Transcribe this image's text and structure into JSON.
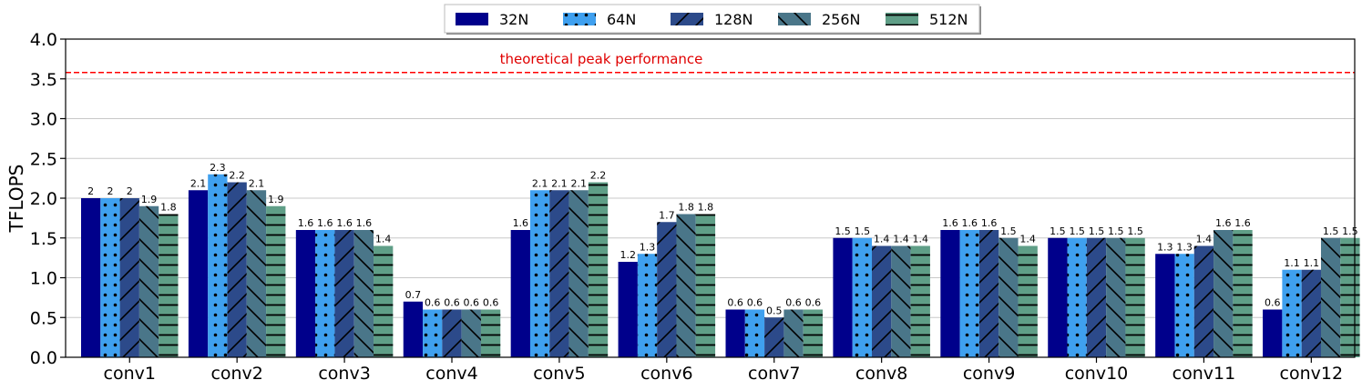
{
  "chart_data": {
    "type": "bar",
    "title": "",
    "xlabel": "",
    "ylabel": "TFLOPS",
    "ylim": [
      0,
      4.0
    ],
    "yticks": [
      "0.0",
      "0.5",
      "1.0",
      "1.5",
      "2.0",
      "2.5",
      "3.0",
      "3.5",
      "4.0"
    ],
    "grid": "horizontal",
    "legend": "top-center",
    "categories": [
      "conv1",
      "conv2",
      "conv3",
      "conv4",
      "conv5",
      "conv6",
      "conv7",
      "conv8",
      "conv9",
      "conv10",
      "conv11",
      "conv12"
    ],
    "series": [
      {
        "name": "32N",
        "color": "#00008b",
        "pattern": "solid",
        "values": [
          2,
          2.1,
          1.6,
          0.7,
          1.6,
          1.2,
          0.6,
          1.5,
          1.6,
          1.5,
          1.3,
          0.6
        ],
        "labels": [
          "2",
          "2.1",
          "1.6",
          "0.7",
          "1.6",
          "1.2",
          "0.6",
          "1.5",
          "1.6",
          "1.5",
          "1.3",
          "0.6"
        ]
      },
      {
        "name": "64N",
        "color": "#3fa0ef",
        "pattern": "dots",
        "values": [
          2,
          2.3,
          1.6,
          0.6,
          2.1,
          1.3,
          0.6,
          1.5,
          1.6,
          1.5,
          1.3,
          1.1
        ],
        "labels": [
          "2",
          "2.3",
          "1.6",
          "0.6",
          "2.1",
          "1.3",
          "0.6",
          "1.5",
          "1.6",
          "1.5",
          "1.3",
          "1.1"
        ]
      },
      {
        "name": "128N",
        "color": "#2c4a8a",
        "pattern": "forward-diagonal",
        "values": [
          2,
          2.2,
          1.6,
          0.6,
          2.1,
          1.7,
          0.5,
          1.4,
          1.6,
          1.5,
          1.4,
          1.1
        ],
        "labels": [
          "2",
          "2.2",
          "1.6",
          "0.6",
          "2.1",
          "1.7",
          "0.5",
          "1.4",
          "1.6",
          "1.5",
          "1.4",
          "1.1"
        ]
      },
      {
        "name": "256N",
        "color": "#4a7689",
        "pattern": "back-diagonal",
        "values": [
          1.9,
          2.1,
          1.6,
          0.6,
          2.1,
          1.8,
          0.6,
          1.4,
          1.5,
          1.5,
          1.6,
          1.5
        ],
        "labels": [
          "1.9",
          "2.1",
          "1.6",
          "0.6",
          "2.1",
          "1.8",
          "0.6",
          "1.4",
          "1.5",
          "1.5",
          "1.6",
          "1.5"
        ]
      },
      {
        "name": "512N",
        "color": "#5f9e87",
        "pattern": "horizontal",
        "values": [
          1.8,
          1.9,
          1.4,
          0.6,
          2.2,
          1.8,
          0.6,
          1.4,
          1.4,
          1.5,
          1.6,
          1.5
        ],
        "labels": [
          "1.8",
          "1.9",
          "1.4",
          "0.6",
          "2.2",
          "1.8",
          "0.6",
          "1.4",
          "1.4",
          "1.5",
          "1.6",
          "1.5"
        ]
      }
    ],
    "reference_line": {
      "value": 3.58,
      "label": "theoretical peak performance",
      "color": "#ff0000",
      "style": "dashed"
    }
  }
}
